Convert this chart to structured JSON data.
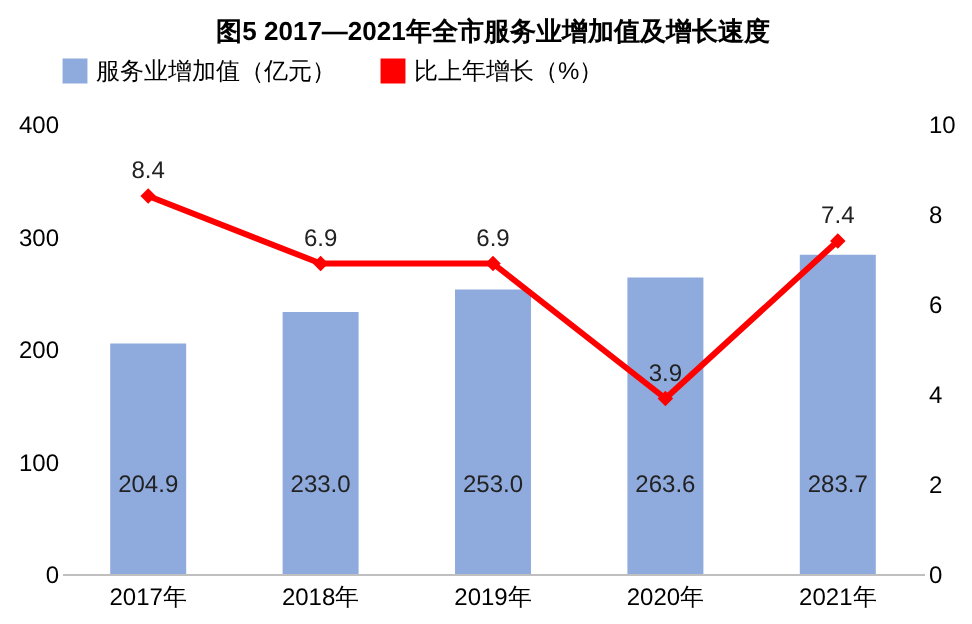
{
  "chart_data": {
    "type": "bar",
    "title": "图5  2017—2021年全市服务业增加值及增长速度",
    "categories": [
      "2017年",
      "2018年",
      "2019年",
      "2020年",
      "2021年"
    ],
    "series": [
      {
        "name": "服务业增加值（亿元）",
        "color": "#8faadc",
        "values": [
          204.9,
          233.0,
          253.0,
          263.6,
          283.7
        ],
        "value_labels": [
          "204.9",
          "233.0",
          "253.0",
          "263.6",
          "283.7"
        ]
      },
      {
        "name": "比上年增长（%）",
        "type": "line",
        "axis": "y2",
        "color": "#ff0000",
        "values": [
          8.4,
          6.9,
          6.9,
          3.9,
          7.4
        ],
        "value_labels": [
          "8.4",
          "6.9",
          "6.9",
          "3.9",
          "7.4"
        ]
      }
    ],
    "ylim": [
      0,
      400
    ],
    "yticks": [
      0,
      100,
      200,
      300,
      400
    ],
    "y2lim": [
      0,
      10
    ],
    "y2ticks": [
      0,
      2,
      4,
      6,
      8,
      10
    ],
    "grid": false,
    "legend": "top",
    "marker": "diamond",
    "line_style": "solid"
  }
}
